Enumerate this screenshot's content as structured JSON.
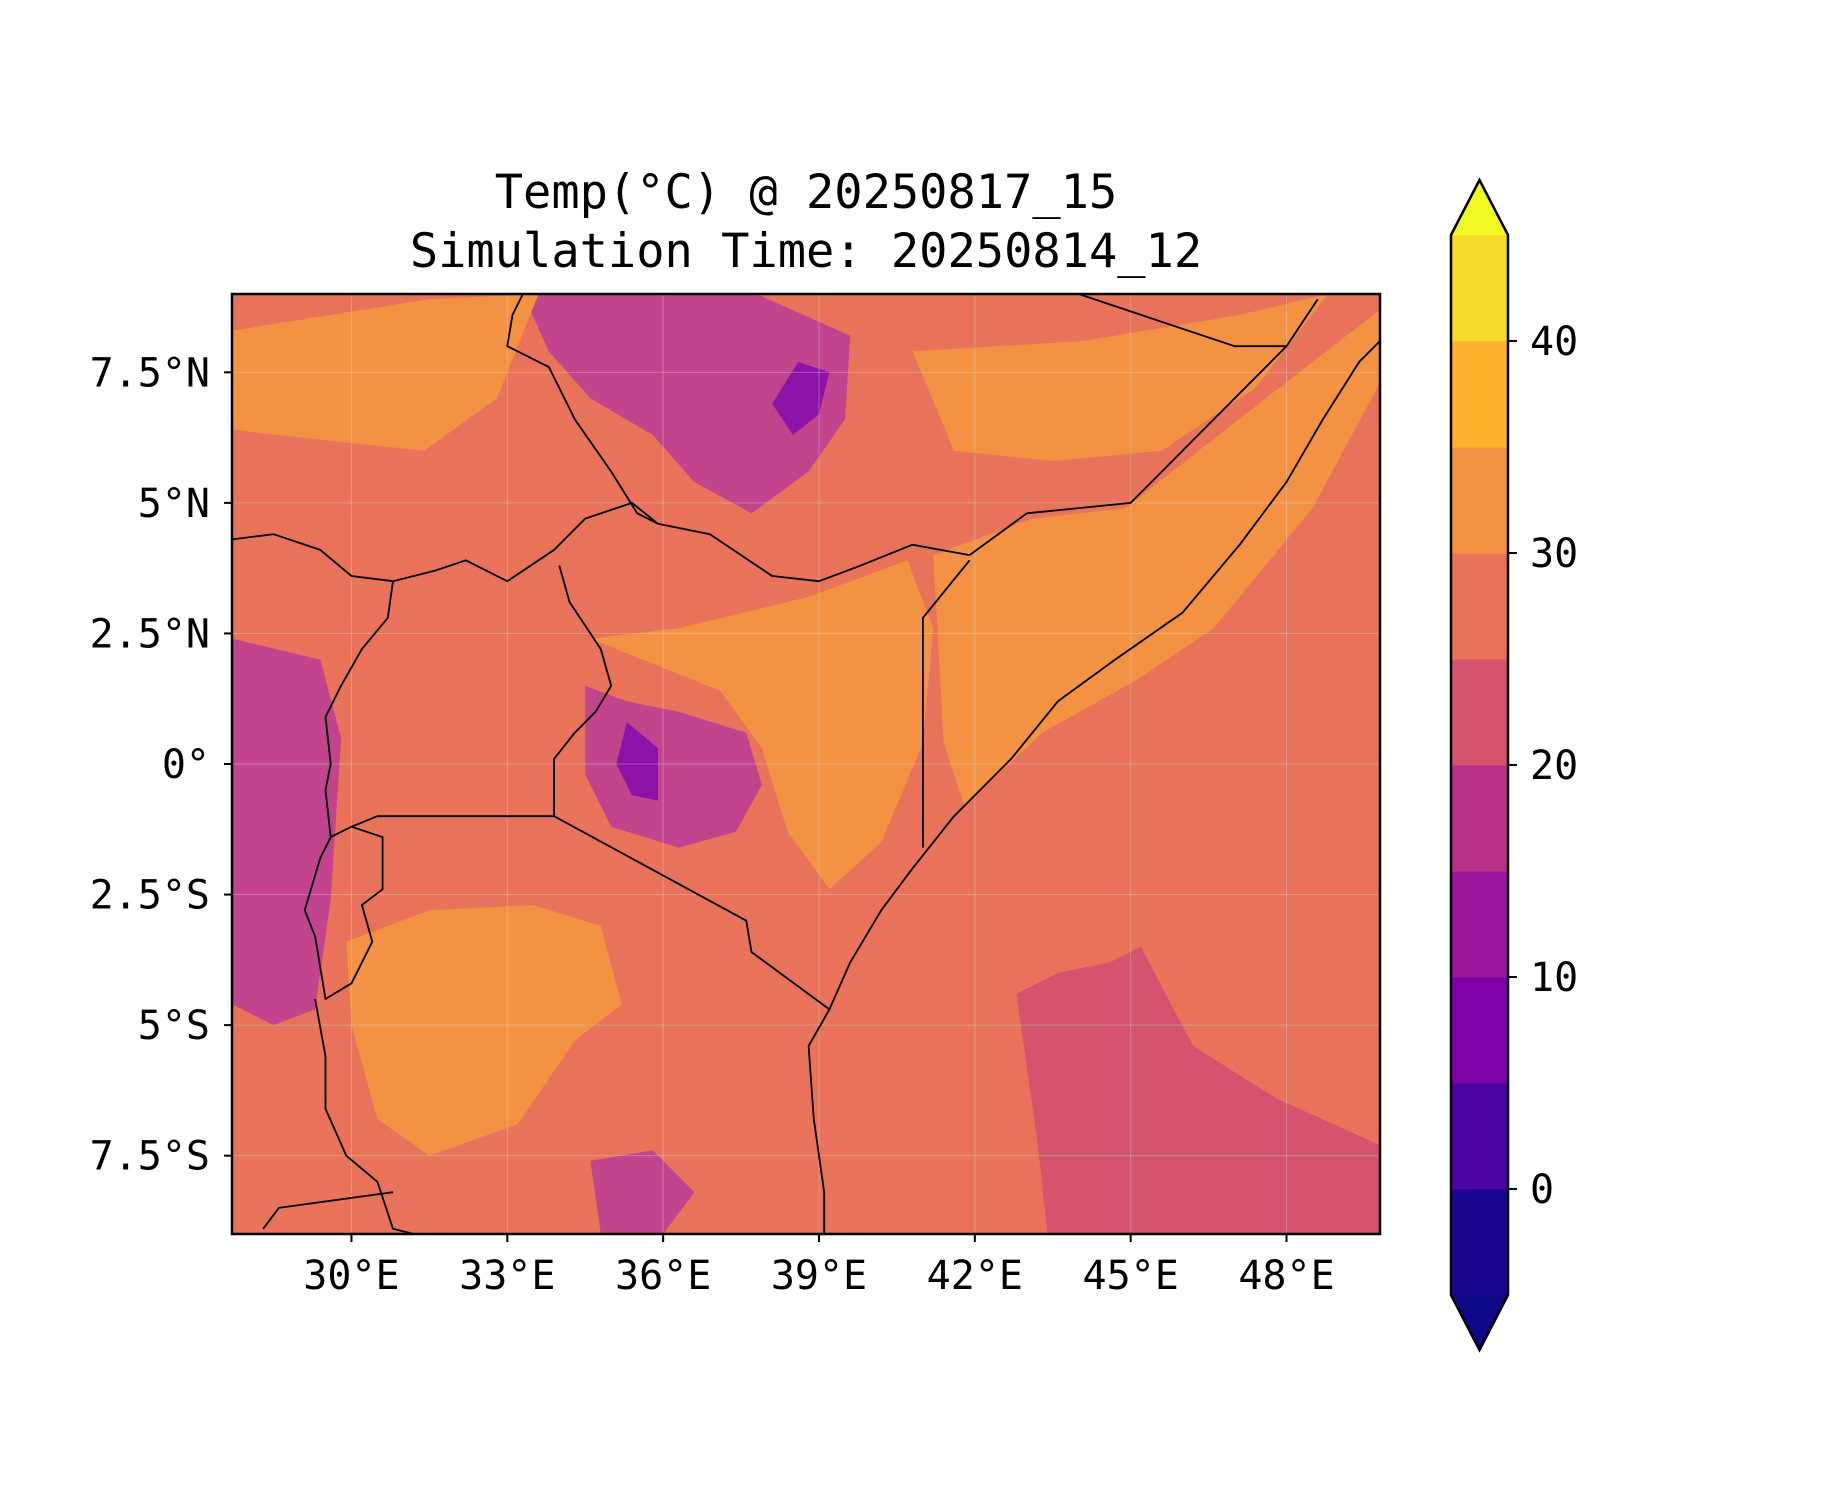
{
  "figure": {
    "title_line1": "Temp(°C) @ 20250817_15",
    "title_line2": "Simulation Time: 20250814_12"
  },
  "map": {
    "extent": {
      "lon": [
        27.7,
        49.8
      ],
      "lat": [
        -9.0,
        9.0
      ]
    },
    "x_ticks": [
      {
        "value": 30,
        "label": "30°E"
      },
      {
        "value": 33,
        "label": "33°E"
      },
      {
        "value": 36,
        "label": "36°E"
      },
      {
        "value": 39,
        "label": "39°E"
      },
      {
        "value": 42,
        "label": "42°E"
      },
      {
        "value": 45,
        "label": "45°E"
      },
      {
        "value": 48,
        "label": "48°E"
      }
    ],
    "y_ticks": [
      {
        "value": 7.5,
        "label": "7.5°N"
      },
      {
        "value": 5,
        "label": "5°N"
      },
      {
        "value": 2.5,
        "label": "2.5°N"
      },
      {
        "value": 0,
        "label": "0°"
      },
      {
        "value": -2.5,
        "label": "2.5°S"
      },
      {
        "value": -5,
        "label": "5°S"
      },
      {
        "value": -7.5,
        "label": "7.5°S"
      }
    ],
    "background_color": "#e8735a",
    "regions": [
      {
        "name": "ethiopian-highlands",
        "color": "#c1448c",
        "points": [
          [
            33.3,
            9.0
          ],
          [
            37.8,
            9.0
          ],
          [
            39.6,
            8.2
          ],
          [
            39.5,
            6.6
          ],
          [
            38.8,
            5.6
          ],
          [
            37.7,
            4.8
          ],
          [
            36.6,
            5.4
          ],
          [
            35.8,
            6.3
          ],
          [
            34.6,
            7.0
          ],
          [
            33.8,
            7.9
          ]
        ]
      },
      {
        "name": "ethiopian-highlands-core",
        "color": "#8b13a6",
        "points": [
          [
            38.6,
            7.7
          ],
          [
            39.2,
            7.5
          ],
          [
            39.0,
            6.7
          ],
          [
            38.5,
            6.3
          ],
          [
            38.1,
            6.9
          ]
        ]
      },
      {
        "name": "kenya-highlands",
        "color": "#c1448c",
        "points": [
          [
            34.5,
            1.5
          ],
          [
            35.3,
            1.2
          ],
          [
            36.3,
            1.0
          ],
          [
            37.6,
            0.6
          ],
          [
            37.9,
            -0.4
          ],
          [
            37.4,
            -1.3
          ],
          [
            36.3,
            -1.6
          ],
          [
            35.0,
            -1.2
          ],
          [
            34.5,
            -0.2
          ]
        ]
      },
      {
        "name": "kenya-highlands-core",
        "color": "#8b13a6",
        "points": [
          [
            35.3,
            0.8
          ],
          [
            35.9,
            0.3
          ],
          [
            35.9,
            -0.7
          ],
          [
            35.4,
            -0.6
          ],
          [
            35.1,
            0.0
          ]
        ]
      },
      {
        "name": "albertine-rift",
        "color": "#c1448c",
        "points": [
          [
            27.7,
            2.4
          ],
          [
            29.4,
            2.0
          ],
          [
            29.8,
            0.5
          ],
          [
            29.6,
            -2.6
          ],
          [
            29.3,
            -4.7
          ],
          [
            28.5,
            -5.0
          ],
          [
            27.7,
            -4.6
          ]
        ]
      },
      {
        "name": "southern-highlands",
        "color": "#c1448c",
        "points": [
          [
            34.6,
            -7.6
          ],
          [
            35.8,
            -7.4
          ],
          [
            36.6,
            -8.2
          ],
          [
            36.0,
            -9.0
          ],
          [
            34.8,
            -9.0
          ]
        ]
      },
      {
        "name": "tanzania-plateau",
        "color": "#f39242",
        "points": [
          [
            29.9,
            -3.4
          ],
          [
            31.5,
            -2.8
          ],
          [
            33.5,
            -2.7
          ],
          [
            34.8,
            -3.1
          ],
          [
            35.2,
            -4.6
          ],
          [
            34.3,
            -5.3
          ],
          [
            33.2,
            -6.9
          ],
          [
            31.5,
            -7.5
          ],
          [
            30.5,
            -6.8
          ],
          [
            30.0,
            -5.0
          ]
        ]
      },
      {
        "name": "south-sudan-plains",
        "color": "#f39242",
        "points": [
          [
            27.7,
            8.3
          ],
          [
            31.5,
            8.9
          ],
          [
            33.6,
            9.0
          ],
          [
            32.8,
            7.0
          ],
          [
            31.4,
            6.0
          ],
          [
            29.5,
            6.2
          ],
          [
            27.7,
            6.4
          ]
        ]
      },
      {
        "name": "northern-kenya",
        "color": "#f39242",
        "points": [
          [
            34.6,
            2.4
          ],
          [
            36.3,
            2.6
          ],
          [
            38.8,
            3.2
          ],
          [
            40.7,
            3.9
          ],
          [
            41.2,
            2.6
          ],
          [
            41.0,
            0.4
          ],
          [
            40.2,
            -1.5
          ],
          [
            39.2,
            -2.4
          ],
          [
            38.4,
            -1.3
          ],
          [
            37.9,
            0.3
          ],
          [
            37.1,
            1.4
          ]
        ]
      },
      {
        "name": "somali-interior",
        "color": "#f39242",
        "points": [
          [
            41.2,
            4.0
          ],
          [
            43.1,
            4.7
          ],
          [
            44.9,
            4.9
          ],
          [
            47.6,
            7.0
          ],
          [
            49.8,
            8.7
          ],
          [
            49.8,
            7.3
          ],
          [
            48.5,
            4.9
          ],
          [
            46.6,
            2.6
          ],
          [
            45.1,
            1.6
          ],
          [
            43.3,
            0.6
          ],
          [
            41.8,
            -0.8
          ],
          [
            41.4,
            0.4
          ]
        ]
      },
      {
        "name": "ogaden-plateau",
        "color": "#f39242",
        "points": [
          [
            40.8,
            7.9
          ],
          [
            44.1,
            8.1
          ],
          [
            47.1,
            8.6
          ],
          [
            48.8,
            9.0
          ],
          [
            47.4,
            7.2
          ],
          [
            45.6,
            6.0
          ],
          [
            43.5,
            5.8
          ],
          [
            41.6,
            6.0
          ]
        ]
      },
      {
        "name": "indian-ocean-cool-zone",
        "color": "#d5536f",
        "points": [
          [
            42.8,
            -4.4
          ],
          [
            43.6,
            -4.0
          ],
          [
            44.6,
            -3.8
          ],
          [
            45.2,
            -3.5
          ],
          [
            46.2,
            -5.4
          ],
          [
            47.8,
            -6.4
          ],
          [
            49.8,
            -7.3
          ],
          [
            49.8,
            -9.0
          ],
          [
            43.4,
            -9.0
          ],
          [
            43.2,
            -7.2
          ]
        ]
      }
    ],
    "borders": [
      {
        "name": "east-coastline",
        "points": [
          [
            39.1,
            -9.0
          ],
          [
            39.1,
            -8.2
          ],
          [
            38.9,
            -6.8
          ],
          [
            38.8,
            -5.4
          ],
          [
            39.2,
            -4.7
          ],
          [
            39.6,
            -3.8
          ],
          [
            40.2,
            -2.8
          ],
          [
            40.8,
            -2.0
          ],
          [
            41.6,
            -1.0
          ],
          [
            42.7,
            0.1
          ],
          [
            43.6,
            1.2
          ],
          [
            44.7,
            2.0
          ],
          [
            46.0,
            2.9
          ],
          [
            47.1,
            4.2
          ],
          [
            48.0,
            5.4
          ],
          [
            48.7,
            6.6
          ],
          [
            49.4,
            7.7
          ],
          [
            49.8,
            8.1
          ]
        ]
      },
      {
        "name": "kenya-tanzania-border",
        "points": [
          [
            33.9,
            -1.0
          ],
          [
            37.6,
            -3.0
          ],
          [
            37.7,
            -3.6
          ],
          [
            39.2,
            -4.7
          ]
        ]
      },
      {
        "name": "kenya-somalia-border",
        "points": [
          [
            41.0,
            -1.6
          ],
          [
            41.0,
            -0.5
          ],
          [
            41.0,
            2.8
          ],
          [
            41.9,
            3.9
          ]
        ]
      },
      {
        "name": "kenya-ethiopia-border",
        "points": [
          [
            35.9,
            4.6
          ],
          [
            36.9,
            4.4
          ],
          [
            38.1,
            3.6
          ],
          [
            39.0,
            3.5
          ],
          [
            39.8,
            3.8
          ],
          [
            40.8,
            4.2
          ],
          [
            41.9,
            4.0
          ]
        ]
      },
      {
        "name": "ethiopia-somalia-border",
        "points": [
          [
            41.9,
            4.0
          ],
          [
            43.0,
            4.8
          ],
          [
            44.0,
            4.9
          ],
          [
            45.0,
            5.0
          ],
          [
            47.0,
            7.0
          ],
          [
            48.0,
            8.0
          ],
          [
            48.6,
            8.9
          ]
        ]
      },
      {
        "name": "somaliland-border",
        "points": [
          [
            44.0,
            9.0
          ],
          [
            47.0,
            8.0
          ],
          [
            48.0,
            8.0
          ]
        ]
      },
      {
        "name": "sudan-ethiopia-border",
        "points": [
          [
            33.3,
            9.0
          ],
          [
            33.1,
            8.6
          ],
          [
            33.0,
            8.0
          ],
          [
            33.8,
            7.6
          ],
          [
            34.3,
            6.6
          ],
          [
            35.0,
            5.6
          ],
          [
            35.5,
            4.8
          ],
          [
            35.9,
            4.6
          ]
        ]
      },
      {
        "name": "south-sudan-uganda-border",
        "points": [
          [
            27.7,
            4.3
          ],
          [
            28.5,
            4.4
          ],
          [
            29.4,
            4.1
          ],
          [
            30.0,
            3.6
          ],
          [
            30.8,
            3.5
          ],
          [
            31.6,
            3.7
          ],
          [
            32.2,
            3.9
          ],
          [
            33.0,
            3.5
          ],
          [
            33.9,
            4.1
          ],
          [
            34.5,
            4.7
          ],
          [
            35.4,
            5.0
          ],
          [
            35.9,
            4.6
          ]
        ]
      },
      {
        "name": "uganda-kenya-border",
        "points": [
          [
            34.0,
            3.8
          ],
          [
            34.2,
            3.1
          ],
          [
            34.8,
            2.2
          ],
          [
            35.0,
            1.5
          ],
          [
            34.7,
            1.0
          ],
          [
            34.3,
            0.6
          ],
          [
            33.9,
            0.1
          ],
          [
            33.9,
            -1.0
          ]
        ]
      },
      {
        "name": "uganda-congo-border",
        "points": [
          [
            30.8,
            3.5
          ],
          [
            30.7,
            2.8
          ],
          [
            30.2,
            2.2
          ],
          [
            29.8,
            1.5
          ],
          [
            29.5,
            0.9
          ],
          [
            29.6,
            0.0
          ],
          [
            29.5,
            -0.5
          ],
          [
            29.6,
            -1.4
          ]
        ]
      },
      {
        "name": "uganda-tanzania-border",
        "points": [
          [
            33.9,
            -1.0
          ],
          [
            30.5,
            -1.0
          ],
          [
            30.0,
            -1.2
          ]
        ]
      },
      {
        "name": "rwanda-burundi-outline",
        "points": [
          [
            30.0,
            -1.2
          ],
          [
            30.6,
            -1.4
          ],
          [
            30.6,
            -2.4
          ],
          [
            30.2,
            -2.7
          ],
          [
            30.4,
            -3.4
          ],
          [
            30.0,
            -4.2
          ],
          [
            29.5,
            -4.5
          ],
          [
            29.3,
            -3.3
          ],
          [
            29.1,
            -2.8
          ],
          [
            29.4,
            -1.8
          ],
          [
            29.6,
            -1.4
          ],
          [
            30.0,
            -1.2
          ]
        ]
      },
      {
        "name": "lake-tanganyika-west",
        "points": [
          [
            29.3,
            -4.5
          ],
          [
            29.5,
            -5.6
          ],
          [
            29.5,
            -6.6
          ],
          [
            29.9,
            -7.5
          ],
          [
            30.5,
            -8.0
          ],
          [
            30.8,
            -8.9
          ],
          [
            31.2,
            -9.0
          ]
        ]
      },
      {
        "name": "zambia-border",
        "points": [
          [
            28.3,
            -8.9
          ],
          [
            28.6,
            -8.5
          ],
          [
            30.8,
            -8.2
          ]
        ]
      }
    ]
  },
  "colorbar": {
    "ticks": [
      {
        "value": 0,
        "label": "0"
      },
      {
        "value": 10,
        "label": "10"
      },
      {
        "value": 20,
        "label": "20"
      },
      {
        "value": 30,
        "label": "30"
      },
      {
        "value": 40,
        "label": "40"
      }
    ],
    "levels": [
      -5,
      0,
      5,
      10,
      15,
      20,
      25,
      30,
      35,
      40,
      45
    ],
    "colors": [
      "#1a0590",
      "#4b03a1",
      "#7c01a6",
      "#9c179e",
      "#b93289",
      "#d5536f",
      "#e8735a",
      "#f39242",
      "#fbb22d",
      "#f6db2a"
    ],
    "under_color": "#0d0887",
    "over_color": "#f0f921"
  }
}
